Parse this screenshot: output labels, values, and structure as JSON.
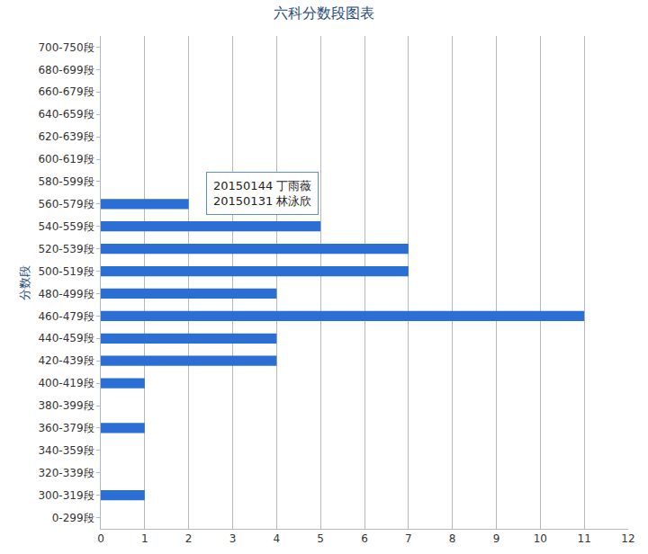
{
  "chart_data": {
    "type": "bar",
    "orientation": "horizontal",
    "title": "六科分数段图表",
    "y_label": "分数段",
    "categories": [
      "0-299段",
      "300-319段",
      "320-339段",
      "340-359段",
      "360-379段",
      "380-399段",
      "400-419段",
      "420-439段",
      "440-459段",
      "460-479段",
      "480-499段",
      "500-519段",
      "520-539段",
      "540-559段",
      "560-579段",
      "580-599段",
      "600-619段",
      "620-639段",
      "640-659段",
      "660-679段",
      "680-699段",
      "700-750段"
    ],
    "values": [
      0,
      1,
      0,
      0,
      1,
      0,
      1,
      4,
      4,
      11,
      4,
      7,
      7,
      5,
      2,
      0,
      0,
      0,
      0,
      0,
      0,
      0
    ],
    "color": "#2b6fd4",
    "xlim": [
      0,
      12
    ],
    "xticks": [
      0,
      1,
      2,
      3,
      4,
      5,
      6,
      7,
      8,
      9,
      10,
      11,
      12
    ],
    "grid": true,
    "annotations": [
      {
        "lines": [
          "20150144 丁雨薇",
          "20150131 林泳欣"
        ]
      }
    ]
  }
}
